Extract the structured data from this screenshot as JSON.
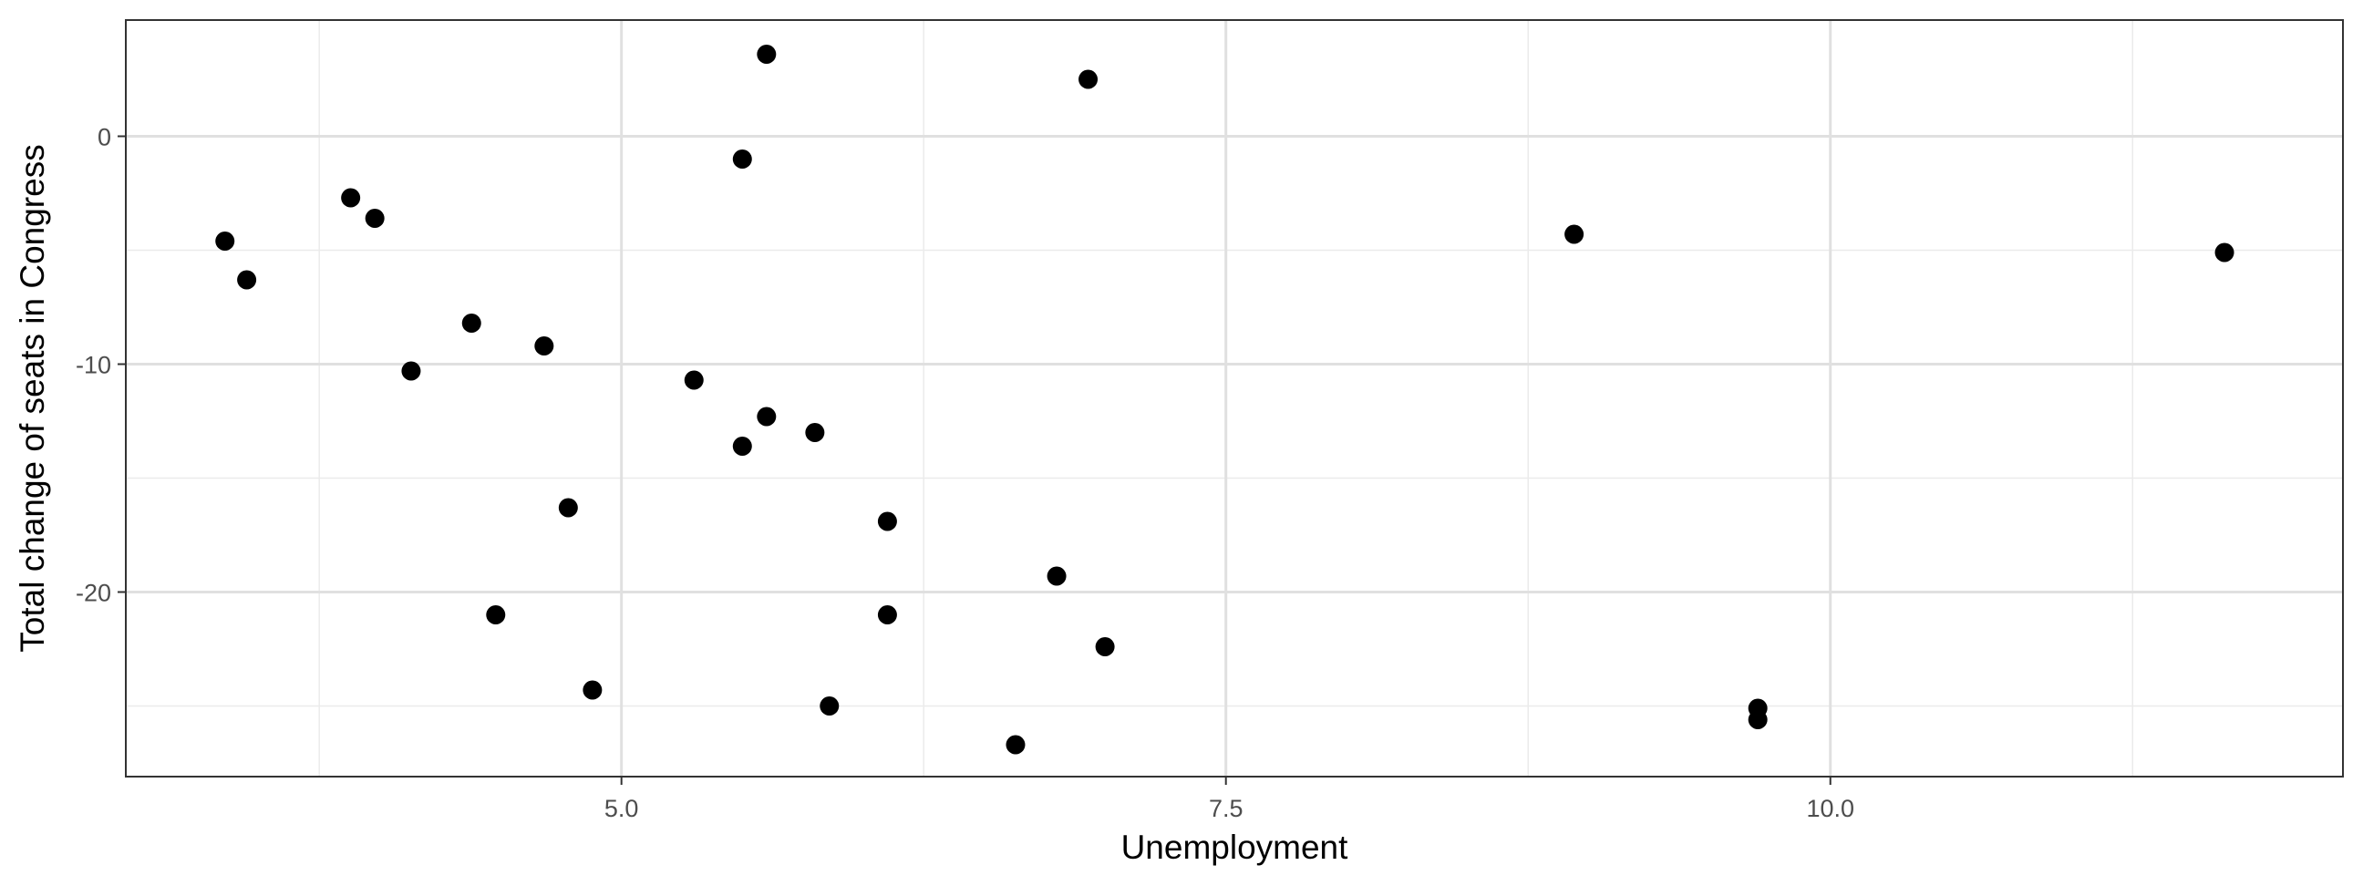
{
  "chart_data": {
    "type": "scatter",
    "title": "",
    "xlabel": "Unemployment",
    "ylabel": "Total change of seats in Congress",
    "xlim": [
      2.95,
      12.12
    ],
    "ylim": [
      -28.1,
      5.1
    ],
    "x_major_ticks": [
      5.0,
      7.5,
      10.0
    ],
    "x_tick_labels": [
      "5.0",
      "7.5",
      "10.0"
    ],
    "x_minor_ticks": [
      3.75,
      6.25,
      8.75,
      11.25
    ],
    "y_major_ticks": [
      0,
      -10,
      -20
    ],
    "y_tick_labels": [
      "0",
      "-10",
      "-20"
    ],
    "y_minor_ticks": [
      -5,
      -15,
      -25
    ],
    "grid": true,
    "point_color": "#000000",
    "points": [
      {
        "x": 3.36,
        "y": -4.6
      },
      {
        "x": 3.45,
        "y": -6.3
      },
      {
        "x": 3.88,
        "y": -2.7
      },
      {
        "x": 3.98,
        "y": -3.6
      },
      {
        "x": 4.13,
        "y": -10.3
      },
      {
        "x": 4.38,
        "y": -8.2
      },
      {
        "x": 4.48,
        "y": -21.0
      },
      {
        "x": 4.68,
        "y": -9.2
      },
      {
        "x": 4.78,
        "y": -16.3
      },
      {
        "x": 4.88,
        "y": -24.3
      },
      {
        "x": 5.3,
        "y": -10.7
      },
      {
        "x": 5.5,
        "y": -1.0
      },
      {
        "x": 5.5,
        "y": -13.6
      },
      {
        "x": 5.6,
        "y": 3.6
      },
      {
        "x": 5.6,
        "y": -12.3
      },
      {
        "x": 5.8,
        "y": -13.0
      },
      {
        "x": 5.86,
        "y": -25.0
      },
      {
        "x": 6.1,
        "y": -16.9
      },
      {
        "x": 6.1,
        "y": -21.0
      },
      {
        "x": 6.63,
        "y": -26.7
      },
      {
        "x": 6.8,
        "y": -19.3
      },
      {
        "x": 6.93,
        "y": 2.5
      },
      {
        "x": 7.0,
        "y": -22.4
      },
      {
        "x": 8.94,
        "y": -4.3
      },
      {
        "x": 9.7,
        "y": -25.1
      },
      {
        "x": 9.7,
        "y": -25.6
      },
      {
        "x": 11.63,
        "y": -5.1
      }
    ]
  }
}
